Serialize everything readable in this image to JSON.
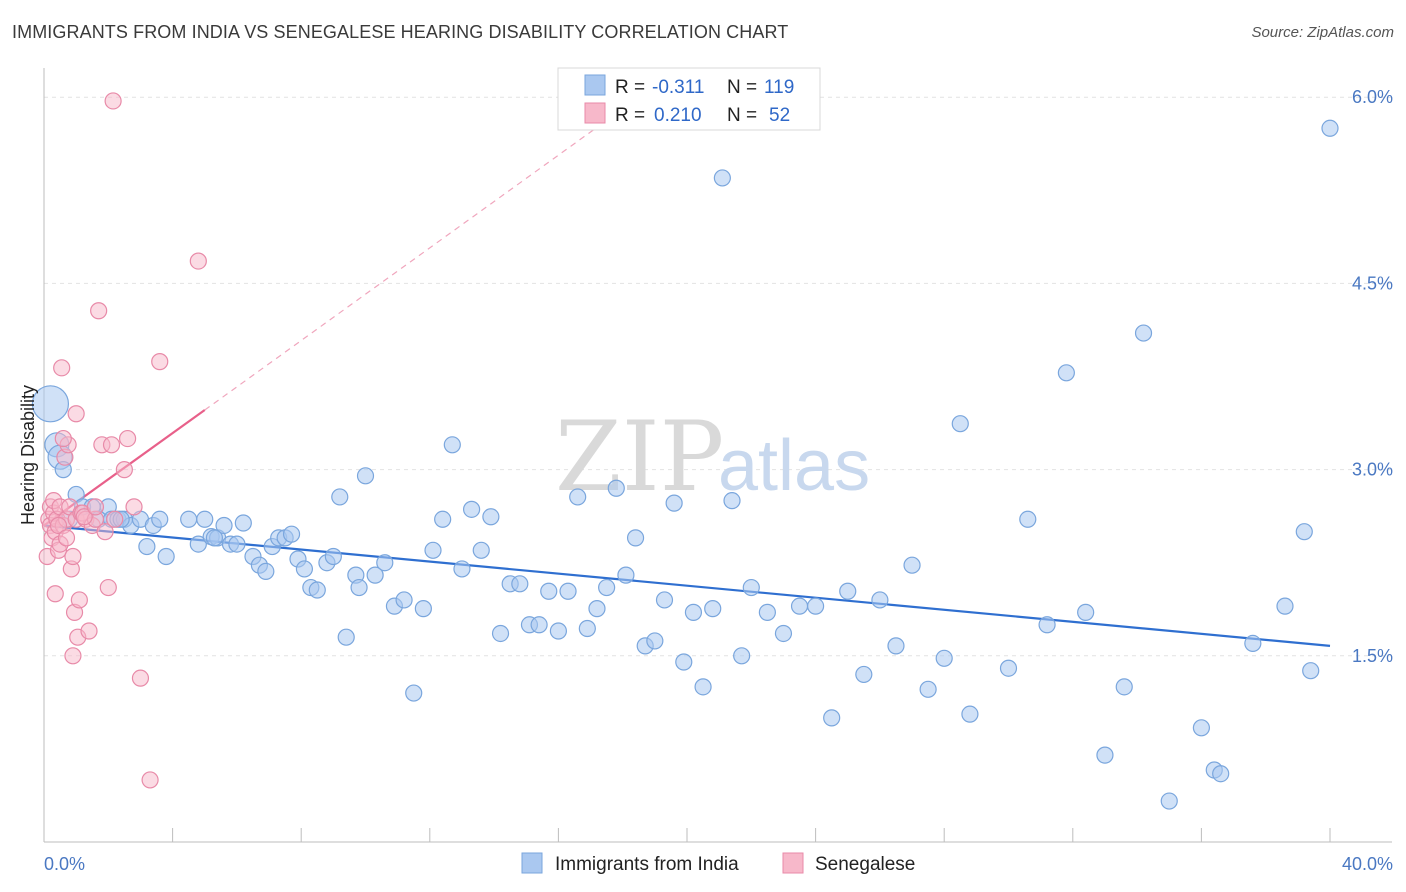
{
  "header": {
    "title": "IMMIGRANTS FROM INDIA VS SENEGALESE HEARING DISABILITY CORRELATION CHART",
    "source": "Source: ZipAtlas.com"
  },
  "watermark": {
    "zip": "ZIP",
    "atlas": "atlas"
  },
  "colors": {
    "india_fill": "#aac8f0",
    "india_stroke": "#7aa6dd",
    "india_line": "#2f6fd0",
    "senegal_fill": "#f7b8ca",
    "senegal_stroke": "#e88aa8",
    "senegal_line": "#e8608a",
    "grid": "#e2e2e2",
    "tick_label": "#4a78c2"
  },
  "legend": {
    "rows": [
      {
        "r_label": "R =",
        "r_value": "-0.311",
        "n_label": "N =",
        "n_value": "119"
      },
      {
        "r_label": "R =",
        "r_value": "0.210",
        "n_label": "N =",
        "n_value": "52"
      }
    ]
  },
  "chart_data": {
    "type": "scatter",
    "title": "IMMIGRANTS FROM INDIA VS SENEGALESE HEARING DISABILITY CORRELATION CHART",
    "ylabel": "Hearing Disability",
    "xlabel": "",
    "xlim": [
      0,
      40
    ],
    "ylim": [
      0,
      6.3
    ],
    "x_tick_labels": [
      "0.0%",
      "40.0%"
    ],
    "y_ticks": [
      1.5,
      3.0,
      4.5,
      6.0
    ],
    "y_tick_labels": [
      "1.5%",
      "3.0%",
      "4.5%",
      "6.0%"
    ],
    "grid": true,
    "legend_position": "top-center",
    "series": [
      {
        "name": "Immigrants from India",
        "trend": {
          "x0": 0,
          "y0": 2.55,
          "x1": 40,
          "y1": 1.58
        },
        "points": [
          [
            0.2,
            3.53
          ],
          [
            0.4,
            3.2
          ],
          [
            0.5,
            3.1
          ],
          [
            0.6,
            3.0
          ],
          [
            0.8,
            2.6
          ],
          [
            1.0,
            2.8
          ],
          [
            1.2,
            2.7
          ],
          [
            1.5,
            2.7
          ],
          [
            1.7,
            2.6
          ],
          [
            2.0,
            2.7
          ],
          [
            2.1,
            2.6
          ],
          [
            2.3,
            2.6
          ],
          [
            2.5,
            2.6
          ],
          [
            2.7,
            2.55
          ],
          [
            3.0,
            2.6
          ],
          [
            3.2,
            2.38
          ],
          [
            3.4,
            2.55
          ],
          [
            3.6,
            2.6
          ],
          [
            3.8,
            2.3
          ],
          [
            4.5,
            2.6
          ],
          [
            4.8,
            2.4
          ],
          [
            5.0,
            2.6
          ],
          [
            5.2,
            2.46
          ],
          [
            5.4,
            2.45
          ],
          [
            5.6,
            2.55
          ],
          [
            5.8,
            2.4
          ],
          [
            6.0,
            2.4
          ],
          [
            6.2,
            2.57
          ],
          [
            6.5,
            2.3
          ],
          [
            6.7,
            2.23
          ],
          [
            6.9,
            2.18
          ],
          [
            7.1,
            2.38
          ],
          [
            7.3,
            2.45
          ],
          [
            7.5,
            2.45
          ],
          [
            7.7,
            2.48
          ],
          [
            7.9,
            2.28
          ],
          [
            8.1,
            2.2
          ],
          [
            8.3,
            2.05
          ],
          [
            8.5,
            2.03
          ],
          [
            8.8,
            2.25
          ],
          [
            9.0,
            2.3
          ],
          [
            9.2,
            2.78
          ],
          [
            9.4,
            1.65
          ],
          [
            9.7,
            2.15
          ],
          [
            10.0,
            2.95
          ],
          [
            10.3,
            2.15
          ],
          [
            10.6,
            2.25
          ],
          [
            10.9,
            1.9
          ],
          [
            11.2,
            1.95
          ],
          [
            11.5,
            1.2
          ],
          [
            11.8,
            1.88
          ],
          [
            12.1,
            2.35
          ],
          [
            12.4,
            2.6
          ],
          [
            12.7,
            3.2
          ],
          [
            13.0,
            2.2
          ],
          [
            13.3,
            2.68
          ],
          [
            13.6,
            2.35
          ],
          [
            13.9,
            2.62
          ],
          [
            14.2,
            1.68
          ],
          [
            14.5,
            2.08
          ],
          [
            14.8,
            2.08
          ],
          [
            15.1,
            1.75
          ],
          [
            15.4,
            1.75
          ],
          [
            15.7,
            2.02
          ],
          [
            16.0,
            1.7
          ],
          [
            16.3,
            2.02
          ],
          [
            16.6,
            2.78
          ],
          [
            16.9,
            1.72
          ],
          [
            17.2,
            1.88
          ],
          [
            17.5,
            2.05
          ],
          [
            17.8,
            2.85
          ],
          [
            18.1,
            2.15
          ],
          [
            18.4,
            2.45
          ],
          [
            18.7,
            1.58
          ],
          [
            19.0,
            1.62
          ],
          [
            19.3,
            1.95
          ],
          [
            19.6,
            2.73
          ],
          [
            19.9,
            1.45
          ],
          [
            20.2,
            1.85
          ],
          [
            20.5,
            1.25
          ],
          [
            20.8,
            1.88
          ],
          [
            21.1,
            5.35
          ],
          [
            21.4,
            2.75
          ],
          [
            21.7,
            1.5
          ],
          [
            22.0,
            2.05
          ],
          [
            22.5,
            1.85
          ],
          [
            23.0,
            1.68
          ],
          [
            23.5,
            1.9
          ],
          [
            24.0,
            1.9
          ],
          [
            24.5,
            1.0
          ],
          [
            25.0,
            2.02
          ],
          [
            25.5,
            1.35
          ],
          [
            26.0,
            1.95
          ],
          [
            26.5,
            1.58
          ],
          [
            27.0,
            2.23
          ],
          [
            27.5,
            1.23
          ],
          [
            28.0,
            1.48
          ],
          [
            28.5,
            3.37
          ],
          [
            28.8,
            1.03
          ],
          [
            30.0,
            1.4
          ],
          [
            30.6,
            2.6
          ],
          [
            31.2,
            1.75
          ],
          [
            31.8,
            3.78
          ],
          [
            32.4,
            1.85
          ],
          [
            33.0,
            0.7
          ],
          [
            33.6,
            1.25
          ],
          [
            34.2,
            4.1
          ],
          [
            35.0,
            0.33
          ],
          [
            36.0,
            0.92
          ],
          [
            36.4,
            0.58
          ],
          [
            36.6,
            0.55
          ],
          [
            37.6,
            1.6
          ],
          [
            38.6,
            1.9
          ],
          [
            39.2,
            2.5
          ],
          [
            39.4,
            1.38
          ],
          [
            40.0,
            5.75
          ],
          [
            2.4,
            2.6
          ],
          [
            5.3,
            2.45
          ],
          [
            9.8,
            2.05
          ]
        ]
      },
      {
        "name": "Senegalese",
        "trend": {
          "x0": 0,
          "y0": 2.55,
          "x1": 5.0,
          "y1": 3.48,
          "dash_to_x": 18.5,
          "dash_to_y": 6.0
        },
        "points": [
          [
            0.1,
            2.3
          ],
          [
            0.15,
            2.6
          ],
          [
            0.2,
            2.7
          ],
          [
            0.2,
            2.55
          ],
          [
            0.25,
            2.45
          ],
          [
            0.3,
            2.65
          ],
          [
            0.3,
            2.75
          ],
          [
            0.35,
            2.5
          ],
          [
            0.4,
            2.6
          ],
          [
            0.45,
            2.35
          ],
          [
            0.5,
            2.4
          ],
          [
            0.5,
            2.7
          ],
          [
            0.55,
            3.82
          ],
          [
            0.6,
            2.55
          ],
          [
            0.65,
            3.1
          ],
          [
            0.7,
            2.6
          ],
          [
            0.75,
            3.2
          ],
          [
            0.8,
            2.7
          ],
          [
            0.85,
            2.2
          ],
          [
            0.9,
            2.3
          ],
          [
            0.95,
            1.85
          ],
          [
            1.0,
            3.45
          ],
          [
            1.0,
            2.6
          ],
          [
            1.05,
            1.65
          ],
          [
            1.1,
            1.95
          ],
          [
            1.15,
            2.65
          ],
          [
            1.2,
            2.65
          ],
          [
            1.3,
            2.6
          ],
          [
            1.4,
            1.7
          ],
          [
            1.5,
            2.55
          ],
          [
            1.6,
            2.6
          ],
          [
            1.7,
            4.28
          ],
          [
            1.8,
            3.2
          ],
          [
            1.9,
            2.5
          ],
          [
            2.0,
            2.05
          ],
          [
            2.1,
            3.2
          ],
          [
            2.2,
            2.6
          ],
          [
            2.5,
            3.0
          ],
          [
            2.6,
            3.25
          ],
          [
            2.8,
            2.7
          ],
          [
            3.0,
            1.32
          ],
          [
            3.3,
            0.5
          ],
          [
            3.6,
            3.87
          ],
          [
            4.8,
            4.68
          ],
          [
            2.15,
            5.97
          ],
          [
            0.6,
            3.25
          ],
          [
            0.9,
            1.5
          ],
          [
            1.25,
            2.62
          ],
          [
            0.45,
            2.55
          ],
          [
            0.7,
            2.45
          ],
          [
            1.6,
            2.7
          ],
          [
            0.35,
            2.0
          ]
        ]
      }
    ]
  },
  "bottom_legend": {
    "items": [
      {
        "label": "Immigrants from India"
      },
      {
        "label": "Senegalese"
      }
    ]
  }
}
